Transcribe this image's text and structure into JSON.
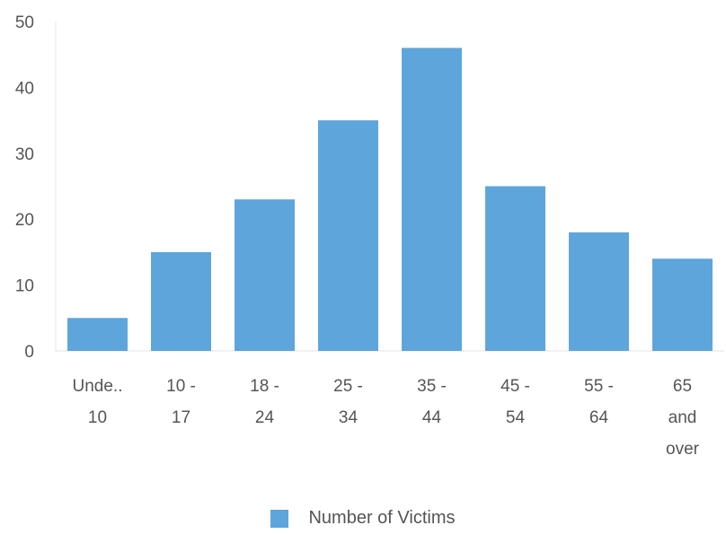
{
  "chart_data": {
    "type": "bar",
    "categories": [
      [
        "Unde..",
        "10"
      ],
      [
        "10 -",
        "17"
      ],
      [
        "18 -",
        "24"
      ],
      [
        "25 -",
        "34"
      ],
      [
        "35 -",
        "44"
      ],
      [
        "45 -",
        "54"
      ],
      [
        "55 -",
        "64"
      ],
      [
        "65",
        "and",
        "over"
      ]
    ],
    "series": [
      {
        "name": "Number of Victims",
        "values": [
          5,
          15,
          23,
          35,
          46,
          25,
          18,
          14
        ],
        "color": "#5DA5DA"
      }
    ],
    "yticks": [
      0,
      10,
      20,
      30,
      40,
      50
    ],
    "ylim": [
      0,
      50
    ],
    "grid": false,
    "legend_position": "bottom"
  },
  "legend": {
    "label": "Number of Victims",
    "color": "#5DA5DA"
  }
}
